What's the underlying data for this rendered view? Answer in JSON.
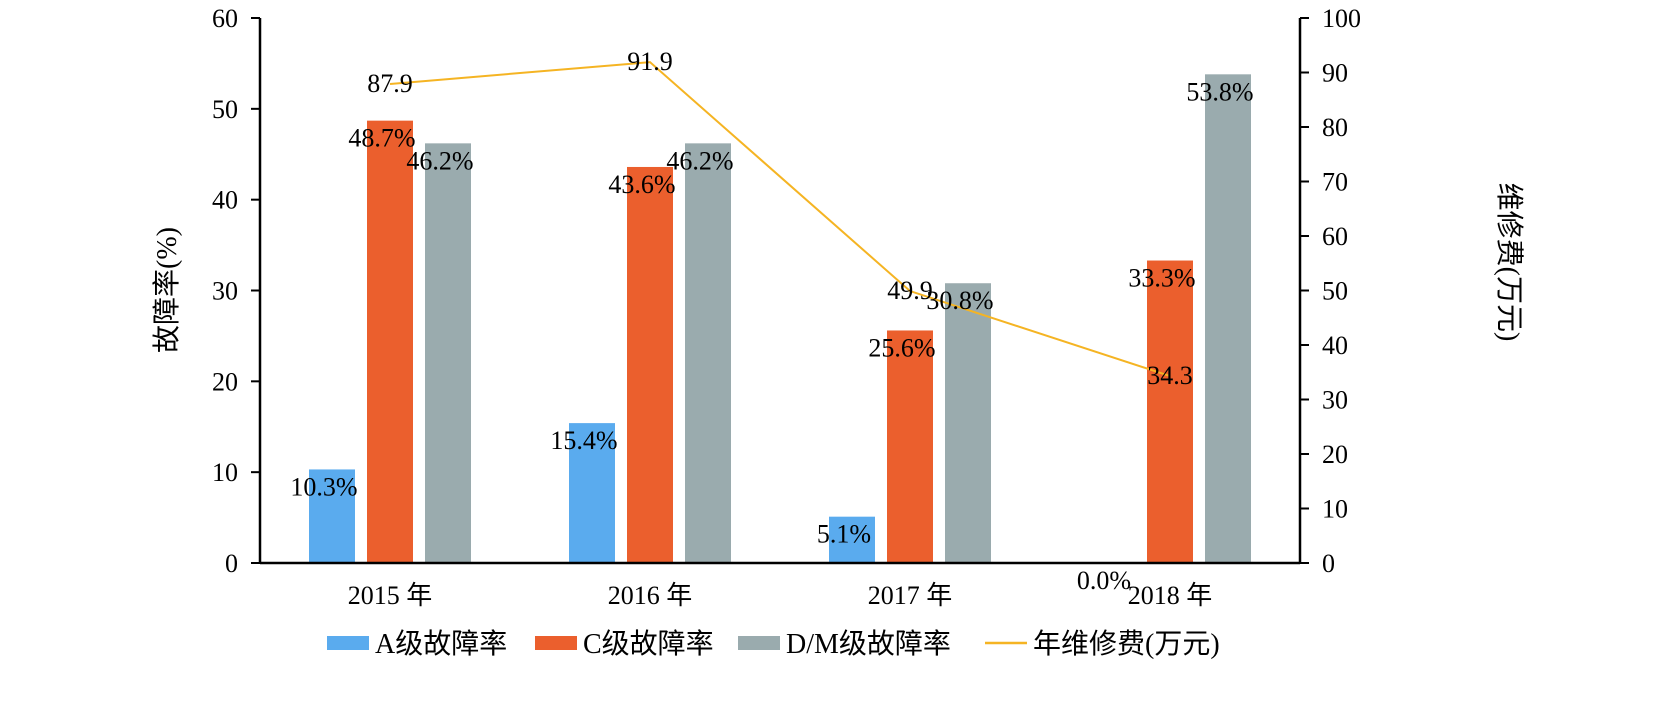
{
  "chart_data": {
    "type": "bar",
    "categories": [
      "2015 年",
      "2016 年",
      "2017 年",
      "2018 年"
    ],
    "series": [
      {
        "name": "A级故障率",
        "type": "bar",
        "axis": "left",
        "color": "#5aabee",
        "values": [
          10.3,
          15.4,
          5.1,
          0.0
        ],
        "labels": [
          "10.3%",
          "15.4%",
          "5.1%",
          "0.0%"
        ]
      },
      {
        "name": "C级故障率",
        "type": "bar",
        "axis": "left",
        "color": "#eb5f2d",
        "values": [
          48.7,
          43.6,
          25.6,
          33.3
        ],
        "labels": [
          "48.7%",
          "43.6%",
          "25.6%",
          "33.3%"
        ]
      },
      {
        "name": "D/M级故障率",
        "type": "bar",
        "axis": "left",
        "color": "#9aabae",
        "values": [
          46.2,
          46.2,
          30.8,
          53.8
        ],
        "labels": [
          "46.2%",
          "46.2%",
          "30.8%",
          "53.8%"
        ]
      },
      {
        "name": "年维修费(万元)",
        "type": "line",
        "axis": "right",
        "color": "#f5b423",
        "values": [
          87.9,
          91.9,
          49.9,
          34.3
        ],
        "labels": [
          "87.9",
          "91.9",
          "49.9",
          "34.3"
        ]
      }
    ],
    "ylabel": "故障率(%)",
    "ylabel_right": "维修费(万元)",
    "ylim": [
      0,
      60
    ],
    "yticks": [
      "0",
      "10",
      "20",
      "30",
      "40",
      "50",
      "60"
    ],
    "ylim_right": [
      0,
      100
    ],
    "yticks_right": [
      "0",
      "10",
      "20",
      "30",
      "40",
      "50",
      "60",
      "70",
      "80",
      "90",
      "100"
    ],
    "grid": false,
    "legend_position": "bottom"
  }
}
